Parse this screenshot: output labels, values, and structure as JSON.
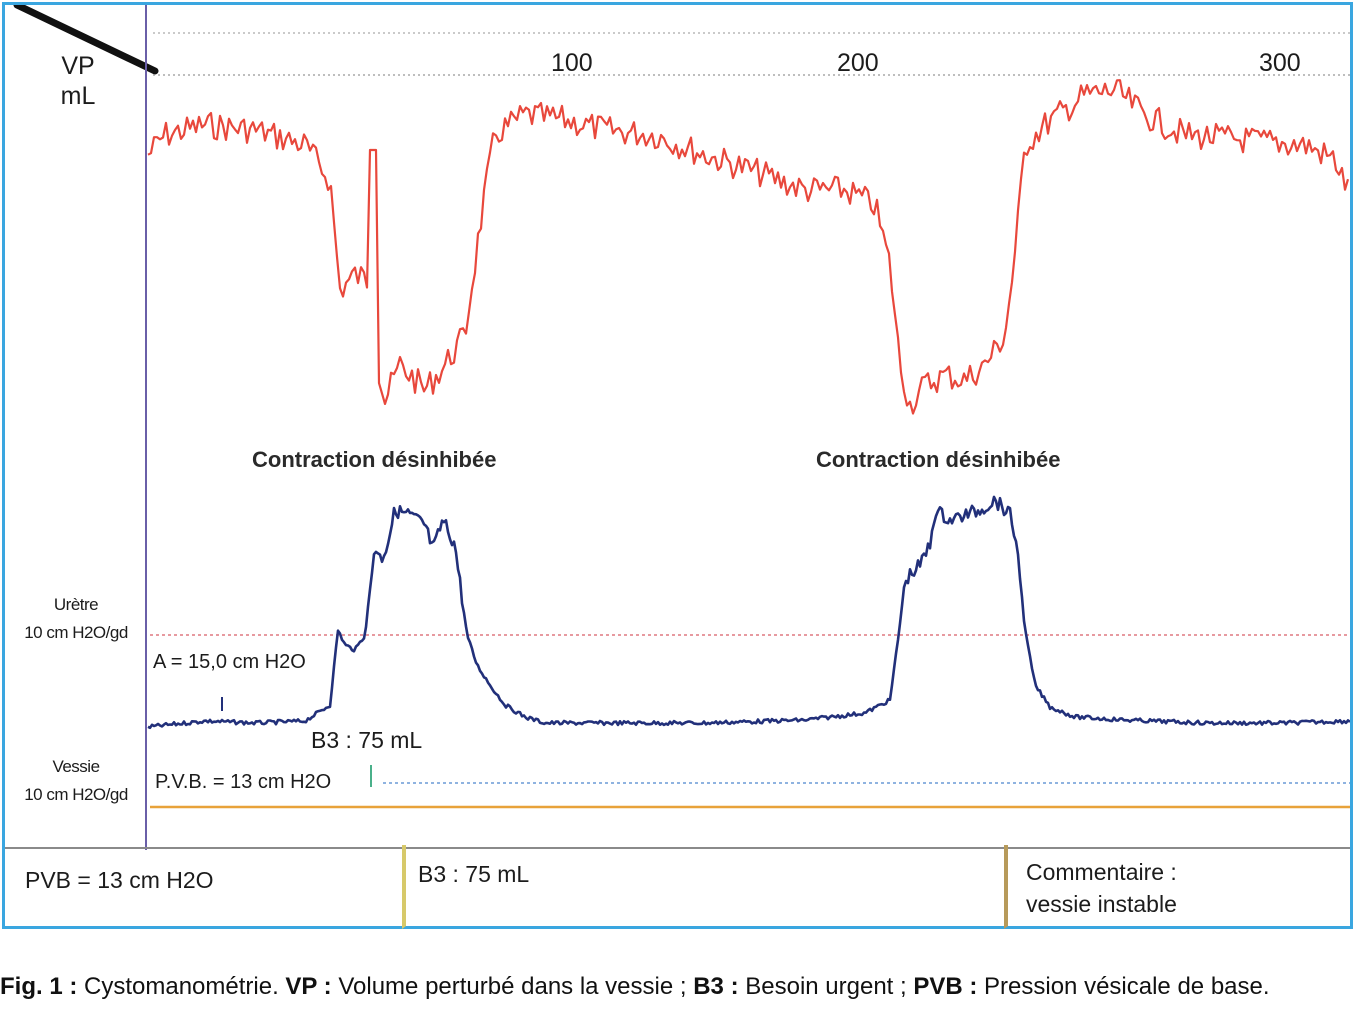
{
  "chart": {
    "vp_label": "VP",
    "vp_unit": "mL",
    "uretre_label": "Urètre",
    "uretre_scale": "10 cm H2O/gd",
    "vessie_label": "Vessie",
    "vessie_scale": "10 cm H2O/gd",
    "contraction_1": "Contraction désinhibée",
    "contraction_2": "Contraction désinhibée",
    "amplitude": "A = 15,0 cm H2O",
    "b3_mark": "B3 : 75 mL",
    "pvb_mark": "P.V.B. = 13 cm H2O",
    "colors": {
      "red_trace": "#e8483c",
      "blue_trace": "#22307a",
      "frame": "#3aa6e0",
      "baseline_red": "#e79aa0",
      "baseline_orange": "#e8a23a",
      "baseline_blue": "#8fb3e0"
    }
  },
  "chart_data": {
    "type": "line",
    "x_ticks": [
      100,
      200,
      300
    ],
    "series": []
  },
  "info_boxes": {
    "pvb": "PVB = 13 cm H2O",
    "b3": "B3 : 75 mL",
    "comment_line1": "Commentaire :",
    "comment_line2": "vessie instable"
  },
  "caption": {
    "fig": "Fig. 1 :",
    "title": "Cystomanométrie.",
    "vp_key": "VP :",
    "vp_text": "Volume perturbé dans la vessie ;",
    "b3_key": "B3 :",
    "b3_text": "Besoin urgent ;",
    "pvb_key": "PVB :",
    "pvb_text": "Pression vésicale de base."
  }
}
